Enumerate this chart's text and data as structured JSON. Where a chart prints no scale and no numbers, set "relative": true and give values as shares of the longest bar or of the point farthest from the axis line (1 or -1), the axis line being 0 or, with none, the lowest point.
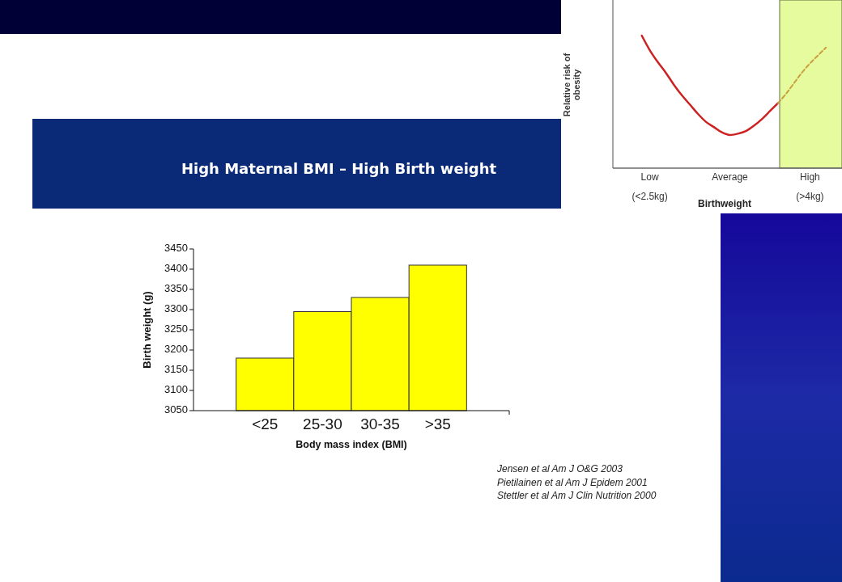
{
  "chart_data": [
    {
      "type": "line",
      "xlabel": "Birthweight",
      "ylabel": "Relative risk of\nobesity",
      "relative": true,
      "categories": [
        null,
        null,
        null,
        null,
        "Low\n(<2.5kg)",
        null,
        null,
        null,
        null,
        null,
        null,
        null,
        null,
        null,
        "Average",
        null,
        null,
        null,
        null,
        null,
        null,
        null,
        null,
        null,
        "High\n(>4kg)",
        null,
        null,
        null,
        null
      ],
      "series": [
        {
          "color": "#cc2222",
          "values": [
            null,
            null,
            null,
            1.0,
            0.89,
            0.8,
            0.72,
            0.63,
            0.55,
            0.48,
            0.41,
            0.35,
            0.31,
            0.27,
            0.25,
            0.26,
            0.28,
            0.32,
            0.37,
            0.43,
            0.49,
            null,
            null,
            null,
            null,
            null,
            null,
            null,
            null
          ]
        },
        {
          "color": "#c9a040",
          "line_style": "dashed",
          "values": [
            null,
            null,
            null,
            null,
            null,
            null,
            null,
            null,
            null,
            null,
            null,
            null,
            null,
            null,
            null,
            null,
            null,
            null,
            null,
            null,
            0.49,
            0.56,
            0.64,
            0.72,
            0.79,
            0.85,
            0.91,
            null,
            null
          ]
        }
      ]
    },
    {
      "type": "bar",
      "title": "High Maternal BMI – High Birth weight",
      "categories": [
        "<25",
        "25-30",
        "30-35",
        ">35"
      ],
      "values": [
        3180,
        3295,
        3330,
        3410
      ],
      "color": "#ffff00",
      "xlabel": "Body mass index (BMI)",
      "ylabel": "Birth weight (g)",
      "ylim": [
        3050,
        3450
      ],
      "yticks": [
        3050,
        3100,
        3150,
        3200,
        3250,
        3300,
        3350,
        3400,
        3450
      ],
      "annotations": [
        "Jensen et al Am J O&G 2003",
        "Pietilainen et al Am J Epidem 2001",
        "Stettler et al Am J Clin Nutrition 2000"
      ]
    }
  ]
}
